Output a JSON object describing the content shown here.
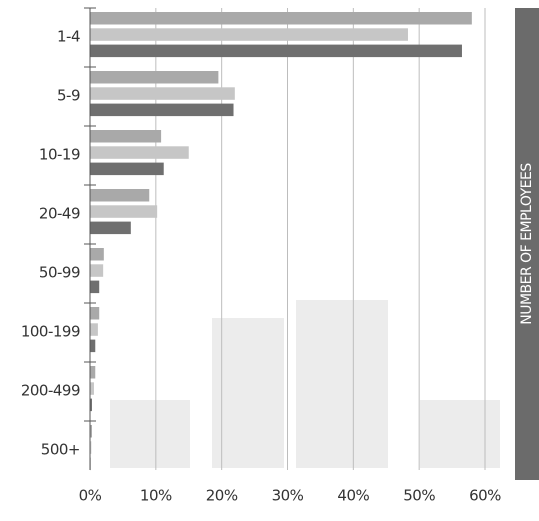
{
  "chart_data": {
    "type": "bar",
    "orientation": "horizontal",
    "categories": [
      "1-4",
      "5-9",
      "10-19",
      "20-49",
      "50-99",
      "100-199",
      "200-499",
      "500+"
    ],
    "series": [
      {
        "color": "#a9a9a9",
        "values": [
          58,
          19.5,
          10.8,
          9,
          2.1,
          1.4,
          0.8,
          0.3
        ]
      },
      {
        "color": "#c6c6c6",
        "values": [
          48.3,
          22,
          15,
          10.2,
          2,
          1.2,
          0.6,
          0.2
        ]
      },
      {
        "color": "#6f6f6f",
        "values": [
          56.5,
          21.8,
          11.2,
          6.2,
          1.4,
          0.8,
          0.3,
          0.1
        ]
      }
    ],
    "xlim": [
      0,
      60
    ],
    "xticks": [
      {
        "value": 0,
        "label": "0%"
      },
      {
        "value": 10,
        "label": "10%"
      },
      {
        "value": 20,
        "label": "20%"
      },
      {
        "value": 30,
        "label": "30%"
      },
      {
        "value": 40,
        "label": "40%"
      },
      {
        "value": 50,
        "label": "50%"
      },
      {
        "value": 60,
        "label": "60%"
      }
    ],
    "grid": true,
    "side_label": "NUMBER OF EMPLOYEES"
  }
}
